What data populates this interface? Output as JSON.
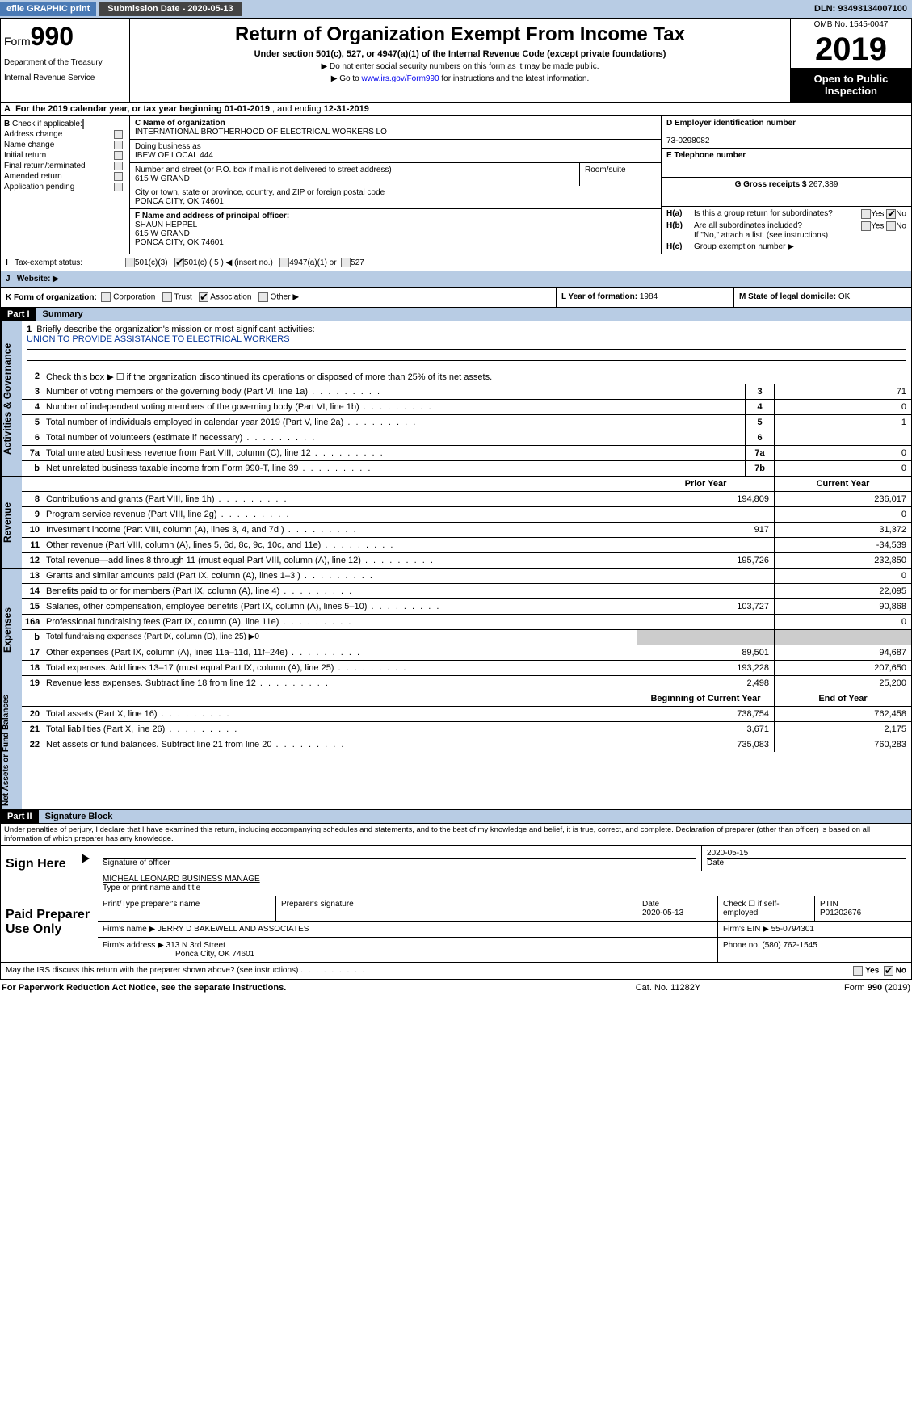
{
  "topbar": {
    "efile": "efile GRAPHIC print",
    "submission_label": "Submission Date - 2020-05-13",
    "dln": "DLN: 93493134007100"
  },
  "header": {
    "form_prefix": "Form",
    "form_num": "990",
    "dept": "Department of the Treasury",
    "irs": "Internal Revenue Service",
    "title": "Return of Organization Exempt From Income Tax",
    "sub": "Under section 501(c), 527, or 4947(a)(1) of the Internal Revenue Code (except private foundations)",
    "note1": "▶ Do not enter social security numbers on this form as it may be made public.",
    "note2_pre": "▶ Go to ",
    "note2_link": "www.irs.gov/Form990",
    "note2_post": " for instructions and the latest information.",
    "omb": "OMB No. 1545-0047",
    "year": "2019",
    "open": "Open to Public Inspection"
  },
  "sectionA": {
    "text_pre": "For the 2019 calendar year, or tax year beginning ",
    "begin": "01-01-2019",
    "text_mid": " , and ending ",
    "end": "12-31-2019"
  },
  "colB": {
    "label": "Check if applicable:",
    "items": [
      "Address change",
      "Name change",
      "Initial return",
      "Final return/terminated",
      "Amended return",
      "Application pending"
    ]
  },
  "colC": {
    "name_label": "C Name of organization",
    "name": "INTERNATIONAL BROTHERHOOD OF ELECTRICAL WORKERS LO",
    "dba_label": "Doing business as",
    "dba": "IBEW OF LOCAL 444",
    "addr_label": "Number and street (or P.O. box if mail is not delivered to street address)",
    "addr": "615 W GRAND",
    "room_label": "Room/suite",
    "city_label": "City or town, state or province, country, and ZIP or foreign postal code",
    "city": "PONCA CITY, OK  74601",
    "f_label": "F Name and address of principal officer:",
    "f_name": "SHAUN HEPPEL",
    "f_addr1": "615 W GRAND",
    "f_addr2": "PONCA CITY, OK  74601"
  },
  "colD": {
    "d_label": "D Employer identification number",
    "ein": "73-0298082",
    "e_label": "E Telephone number",
    "g_label": "G Gross receipts $ ",
    "g_val": "267,389",
    "ha_label": "Is this a group return for subordinates?",
    "hb_label": "Are all subordinates included?",
    "hb_note": "If \"No,\" attach a list. (see instructions)",
    "hc_label": "Group exemption number ▶"
  },
  "rowI": {
    "label": "Tax-exempt status:",
    "o1": "501(c)(3)",
    "o2": "501(c) ( 5 ) ◀ (insert no.)",
    "o3": "4947(a)(1) or",
    "o4": "527"
  },
  "rowJ": {
    "label": "Website: ▶"
  },
  "rowK": {
    "k_label": "K Form of organization:",
    "opts": [
      "Corporation",
      "Trust",
      "Association",
      "Other ▶"
    ],
    "l_label": "L Year of formation: ",
    "l_val": "1984",
    "m_label": "M State of legal domicile: ",
    "m_val": "OK"
  },
  "part1": {
    "tag": "Part I",
    "title": "Summary"
  },
  "mission": {
    "q": "Briefly describe the organization's mission or most significant activities:",
    "a": "UNION TO PROVIDE ASSISTANCE TO ELECTRICAL WORKERS"
  },
  "gov": {
    "tab": "Activities & Governance",
    "l2": "Check this box ▶ ☐ if the organization discontinued its operations or disposed of more than 25% of its net assets.",
    "rows": [
      {
        "n": "3",
        "d": "Number of voting members of the governing body (Part VI, line 1a)",
        "c": "3",
        "v": "71"
      },
      {
        "n": "4",
        "d": "Number of independent voting members of the governing body (Part VI, line 1b)",
        "c": "4",
        "v": "0"
      },
      {
        "n": "5",
        "d": "Total number of individuals employed in calendar year 2019 (Part V, line 2a)",
        "c": "5",
        "v": "1"
      },
      {
        "n": "6",
        "d": "Total number of volunteers (estimate if necessary)",
        "c": "6",
        "v": ""
      },
      {
        "n": "7a",
        "d": "Total unrelated business revenue from Part VIII, column (C), line 12",
        "c": "7a",
        "v": "0"
      },
      {
        "n": "b",
        "d": "Net unrelated business taxable income from Form 990-T, line 39",
        "c": "7b",
        "v": "0"
      }
    ]
  },
  "rev": {
    "tab": "Revenue",
    "hdr_prior": "Prior Year",
    "hdr_curr": "Current Year",
    "rows": [
      {
        "n": "8",
        "d": "Contributions and grants (Part VIII, line 1h)",
        "p": "194,809",
        "c": "236,017"
      },
      {
        "n": "9",
        "d": "Program service revenue (Part VIII, line 2g)",
        "p": "",
        "c": "0"
      },
      {
        "n": "10",
        "d": "Investment income (Part VIII, column (A), lines 3, 4, and 7d )",
        "p": "917",
        "c": "31,372"
      },
      {
        "n": "11",
        "d": "Other revenue (Part VIII, column (A), lines 5, 6d, 8c, 9c, 10c, and 11e)",
        "p": "",
        "c": "-34,539"
      },
      {
        "n": "12",
        "d": "Total revenue—add lines 8 through 11 (must equal Part VIII, column (A), line 12)",
        "p": "195,726",
        "c": "232,850"
      }
    ]
  },
  "exp": {
    "tab": "Expenses",
    "rows": [
      {
        "n": "13",
        "d": "Grants and similar amounts paid (Part IX, column (A), lines 1–3 )",
        "p": "",
        "c": "0"
      },
      {
        "n": "14",
        "d": "Benefits paid to or for members (Part IX, column (A), line 4)",
        "p": "",
        "c": "22,095"
      },
      {
        "n": "15",
        "d": "Salaries, other compensation, employee benefits (Part IX, column (A), lines 5–10)",
        "p": "103,727",
        "c": "90,868"
      },
      {
        "n": "16a",
        "d": "Professional fundraising fees (Part IX, column (A), line 11e)",
        "p": "",
        "c": "0"
      },
      {
        "n": "b",
        "d": "Total fundraising expenses (Part IX, column (D), line 25) ▶0",
        "p": "—",
        "c": "—"
      },
      {
        "n": "17",
        "d": "Other expenses (Part IX, column (A), lines 11a–11d, 11f–24e)",
        "p": "89,501",
        "c": "94,687"
      },
      {
        "n": "18",
        "d": "Total expenses. Add lines 13–17 (must equal Part IX, column (A), line 25)",
        "p": "193,228",
        "c": "207,650"
      },
      {
        "n": "19",
        "d": "Revenue less expenses. Subtract line 18 from line 12",
        "p": "2,498",
        "c": "25,200"
      }
    ]
  },
  "net": {
    "tab": "Net Assets or Fund Balances",
    "hdr_begin": "Beginning of Current Year",
    "hdr_end": "End of Year",
    "rows": [
      {
        "n": "20",
        "d": "Total assets (Part X, line 16)",
        "p": "738,754",
        "c": "762,458"
      },
      {
        "n": "21",
        "d": "Total liabilities (Part X, line 26)",
        "p": "3,671",
        "c": "2,175"
      },
      {
        "n": "22",
        "d": "Net assets or fund balances. Subtract line 21 from line 20",
        "p": "735,083",
        "c": "760,283"
      }
    ]
  },
  "part2": {
    "tag": "Part II",
    "title": "Signature Block"
  },
  "perjury": "Under penalties of perjury, I declare that I have examined this return, including accompanying schedules and statements, and to the best of my knowledge and belief, it is true, correct, and complete. Declaration of preparer (other than officer) is based on all information of which preparer has any knowledge.",
  "sign": {
    "label": "Sign Here",
    "date": "2020-05-15",
    "sig_label": "Signature of officer",
    "date_label": "Date",
    "name": "MICHEAL LEONARD  BUSINESS MANAGE",
    "name_label": "Type or print name and title"
  },
  "paid": {
    "label": "Paid Preparer Use Only",
    "h1": "Print/Type preparer's name",
    "h2": "Preparer's signature",
    "h3": "Date",
    "date": "2020-05-13",
    "h4": "Check ☐ if self-employed",
    "h5": "PTIN",
    "ptin": "P01202676",
    "firm_name_label": "Firm's name    ▶",
    "firm_name": "JERRY D BAKEWELL AND ASSOCIATES",
    "firm_ein_label": "Firm's EIN ▶",
    "firm_ein": "55-0794301",
    "firm_addr_label": "Firm's address ▶",
    "firm_addr1": "313 N 3rd Street",
    "firm_addr2": "Ponca City, OK  74601",
    "phone_label": "Phone no. ",
    "phone": "(580) 762-1545"
  },
  "discuss": "May the IRS discuss this return with the preparer shown above? (see instructions)",
  "footer": {
    "l": "For Paperwork Reduction Act Notice, see the separate instructions.",
    "m": "Cat. No. 11282Y",
    "r": "Form 990 (2019)"
  }
}
